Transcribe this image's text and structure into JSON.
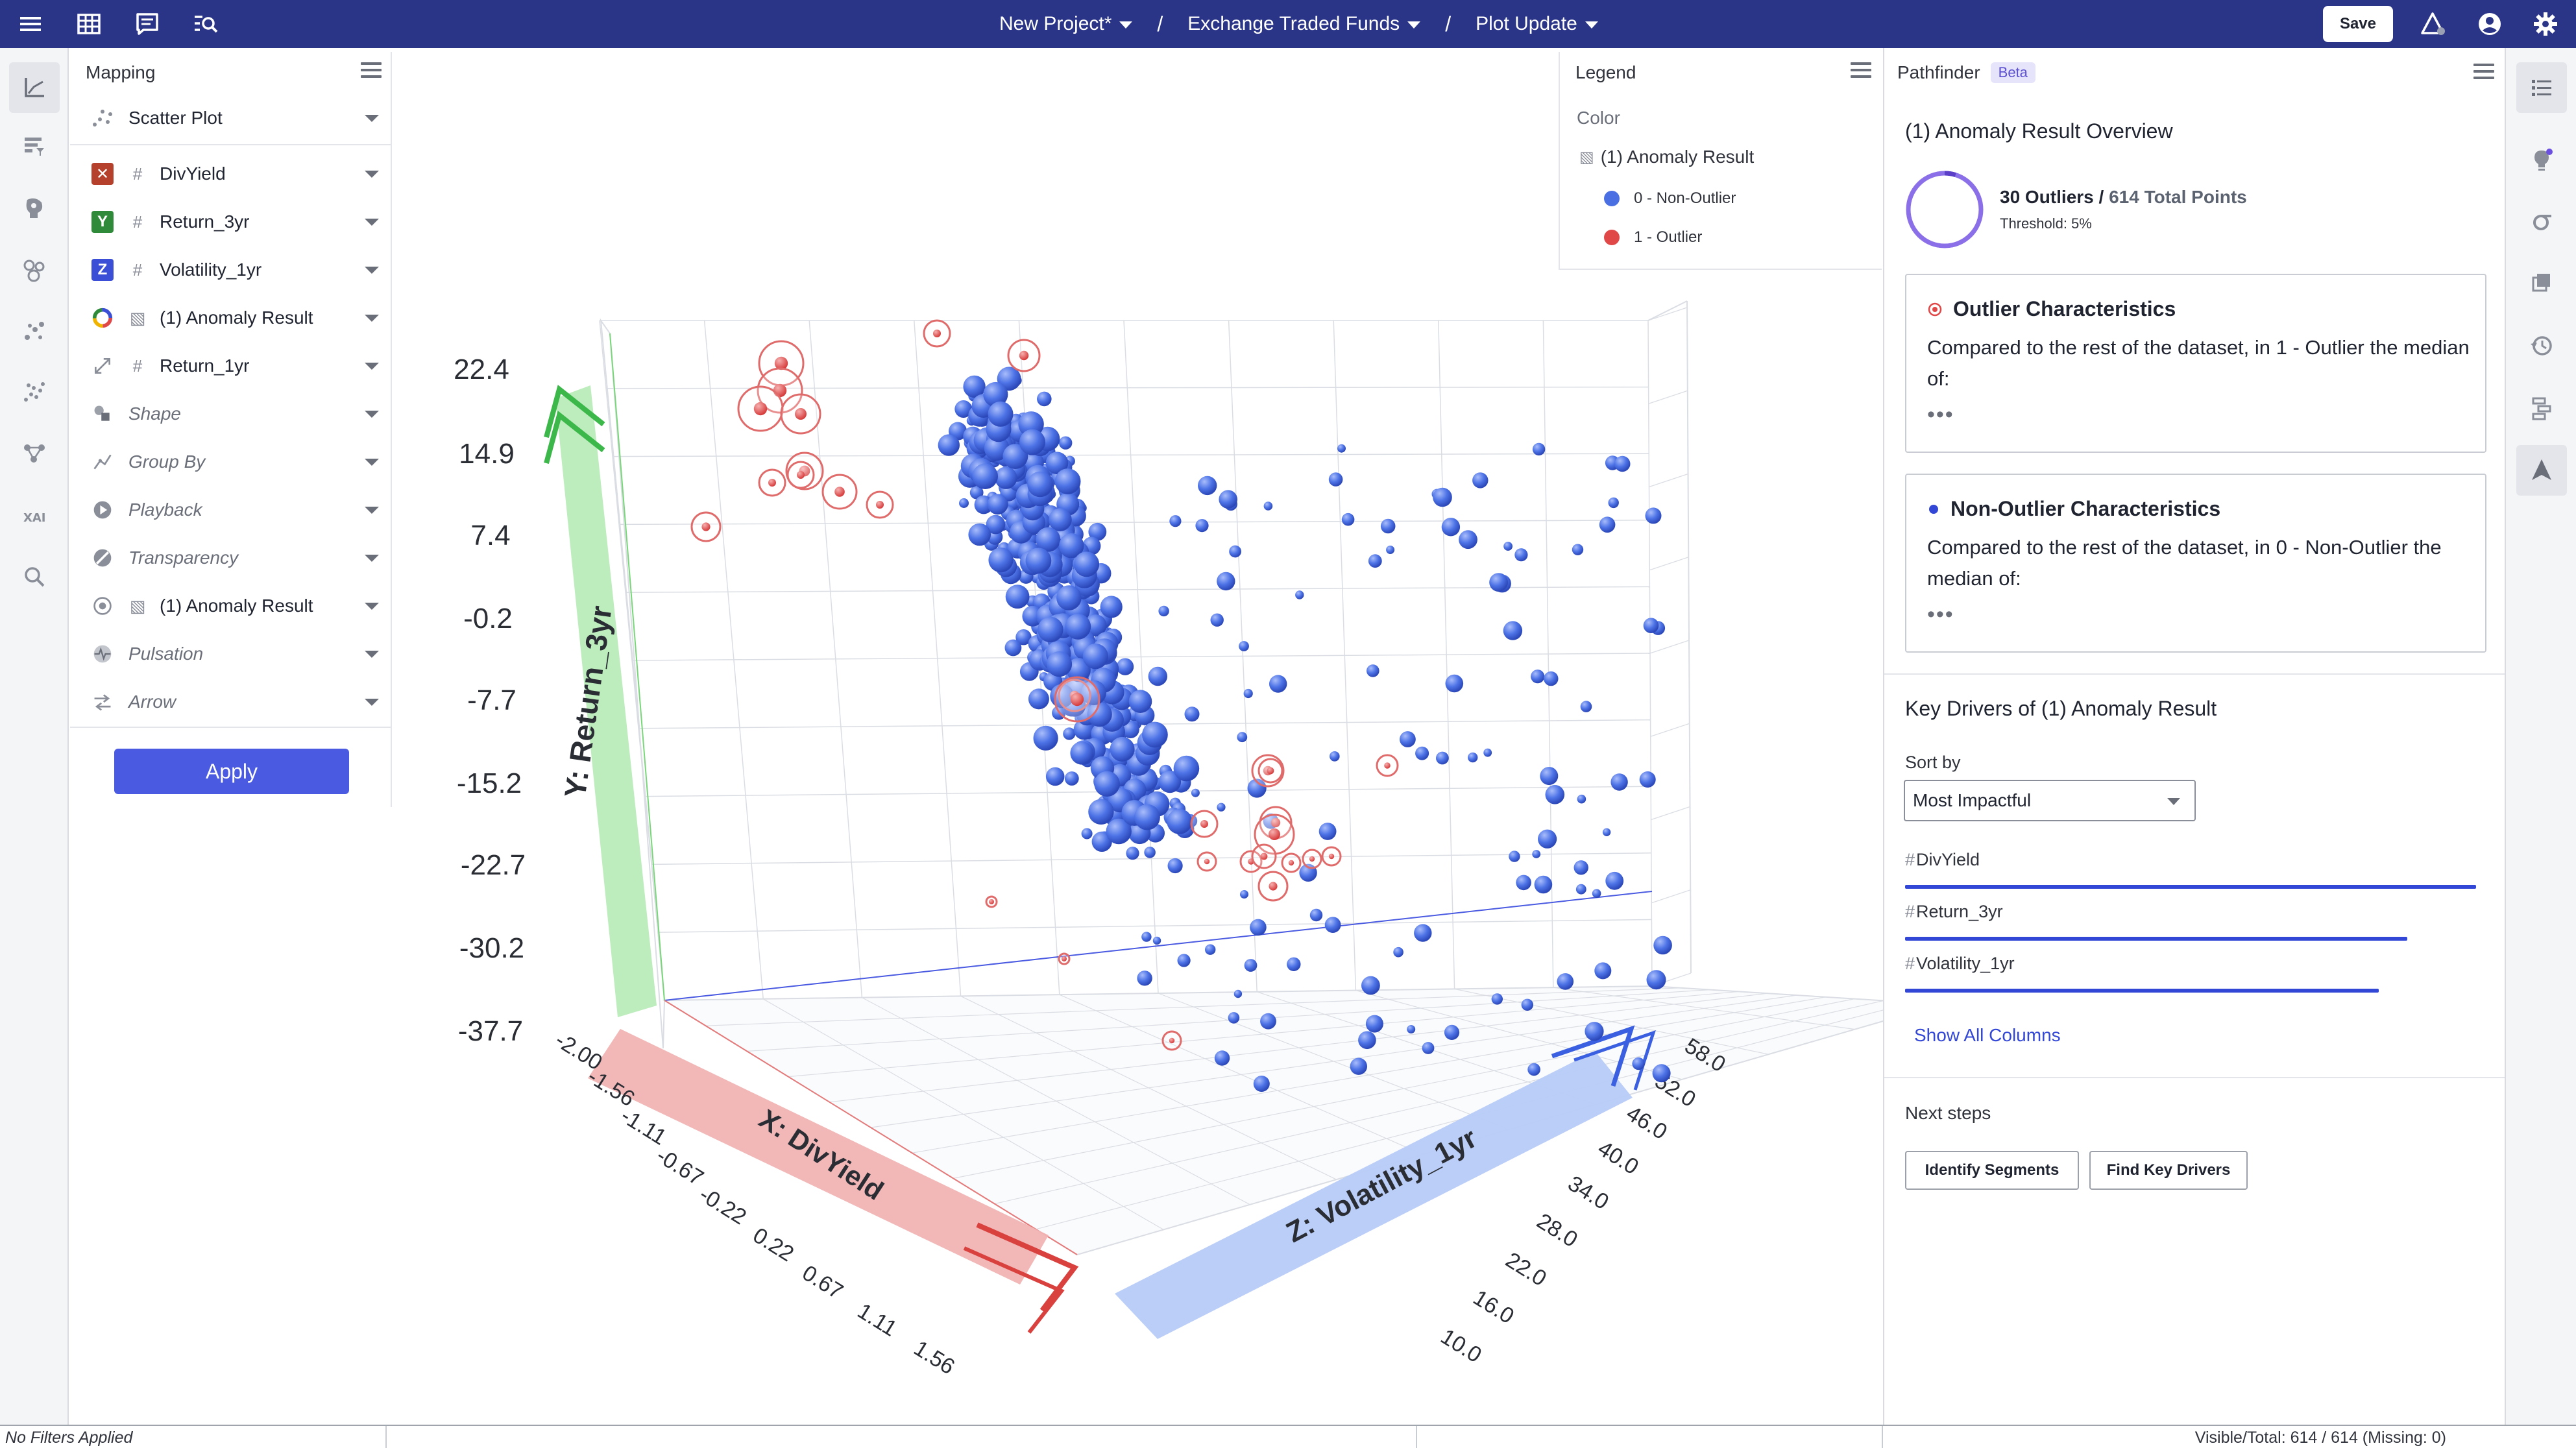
{
  "topbar": {
    "project": "New Project*",
    "dataset": "Exchange Traded Funds",
    "view": "Plot Update",
    "save_label": "Save"
  },
  "mapping": {
    "title": "Mapping",
    "plot_type": "Scatter Plot",
    "x_label": "DivYield",
    "y_label": "Return_3yr",
    "z_label": "Volatility_1yr",
    "color_label": "(1) Anomaly Result",
    "size_label": "Return_1yr",
    "shape_label": "Shape",
    "groupby_label": "Group By",
    "playback_label": "Playback",
    "transparency_label": "Transparency",
    "halo_label": "(1) Anomaly Result",
    "pulsation_label": "Pulsation",
    "arrow_label": "Arrow",
    "apply_label": "Apply",
    "badge_colors": {
      "x": "#b5412c",
      "y": "#2f8a3a",
      "z": "#3a4fd6"
    }
  },
  "legend": {
    "title": "Legend",
    "section": "Color",
    "group": "(1) Anomaly Result",
    "items": [
      {
        "label": "0 - Non-Outlier",
        "color": "#4a6fe3"
      },
      {
        "label": "1 - Outlier",
        "color": "#e04848"
      }
    ]
  },
  "chart_data": {
    "type": "scatter",
    "x_axis": {
      "label": "X: DivYield",
      "ticks": [
        "-2.00",
        "-1.56",
        "-1.11",
        "-0.67",
        "-0.22",
        "0.22",
        "0.67",
        "1.11",
        "1.56"
      ]
    },
    "y_axis": {
      "label": "Y: Return_3yr",
      "ticks": [
        "22.4",
        "14.9",
        "7.4",
        "-0.2",
        "-7.7",
        "-15.2",
        "-22.7",
        "-30.2",
        "-37.7"
      ]
    },
    "z_axis": {
      "label": "Z: Volatility_1yr",
      "ticks": [
        "58.0",
        "52.0",
        "46.0",
        "40.0",
        "34.0",
        "28.0",
        "22.0",
        "16.0",
        "10.0"
      ]
    },
    "series": [
      {
        "name": "0 - Non-Outlier",
        "color": "#4a6fe3"
      },
      {
        "name": "1 - Outlier",
        "color": "#e04848"
      }
    ],
    "total_points": 614,
    "outliers": 30
  },
  "pathfinder": {
    "title": "Pathfinder",
    "beta": "Beta",
    "overview_title": "(1) Anomaly Result Overview",
    "outliers_text": "30 Outliers /",
    "total_text": "614 Total Points",
    "threshold": "Threshold: 5%",
    "outlier_card_title": "Outlier Characteristics",
    "outlier_card_body": "Compared to the rest of the dataset, in 1 - Outlier the median of:",
    "nonoutlier_card_title": "Non-Outlier Characteristics",
    "nonoutlier_card_body": "Compared to the rest of the dataset, in 0 - Non-Outlier the median of:",
    "more": "•••",
    "key_drivers_title": "Key Drivers of (1) Anomaly Result",
    "sort_by": "Sort by",
    "sort_value": "Most Impactful",
    "drivers": [
      {
        "name": "DivYield",
        "strength": 1.0
      },
      {
        "name": "Return_3yr",
        "strength": 0.88
      },
      {
        "name": "Volatility_1yr",
        "strength": 0.83
      }
    ],
    "show_all": "Show All Columns",
    "next_steps": "Next steps",
    "btn_segments": "Identify Segments",
    "btn_drivers": "Find Key Drivers"
  },
  "status": {
    "filters": "No Filters Applied",
    "visible": "Visible/Total: 614 / 614 (Missing: 0)"
  }
}
